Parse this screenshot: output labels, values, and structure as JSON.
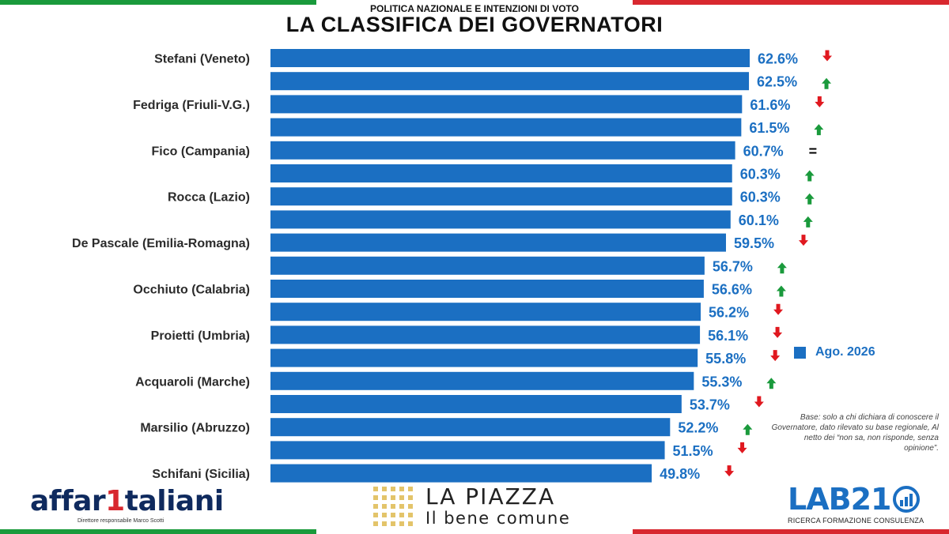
{
  "header": {
    "subtitle": "POLITICA NAZIONALE E INTENZIONI DI VOTO",
    "title": "LA CLASSIFICA DEI GOVERNATORI"
  },
  "colors": {
    "bar": "#1b6fc2",
    "value_label": "#1b6fc2",
    "arrow_up": "#1a9a3c",
    "arrow_down": "#e0181f",
    "flag_green": "#1a9a3c",
    "flag_red": "#d8282f"
  },
  "legend": {
    "label": "Ago. 2026"
  },
  "note": "Base: solo a chi dichiara di conoscere il Governatore, dato rilevato su base regionale, Al netto dei “non sa, non risponde, senza opinione”.",
  "logos": {
    "affaritaliani": {
      "name_part1": "affar",
      "name_digit": "1",
      "name_part2": "taliani",
      "tagline": "Direttore responsabile Marco Scotti"
    },
    "lapiazza": {
      "name": "LA PIAZZA",
      "tagline": "Il bene comune"
    },
    "lab21": {
      "name": "LAB21",
      "tagline": "RICERCA FORMAZIONE CONSULENZA"
    }
  },
  "chart_data": {
    "type": "bar",
    "orientation": "horizontal",
    "title": "LA CLASSIFICA DEI GOVERNATORI",
    "series": [
      {
        "name": "Ago. 2026"
      }
    ],
    "categories": [
      "Stefani (Veneto)",
      "",
      "Fedriga (Friuli-V.G.)",
      "",
      "Fico (Campania)",
      "",
      "Rocca (Lazio)",
      "",
      "De Pascale (Emilia-Romagna)",
      "",
      "Occhiuto (Calabria)",
      "",
      "Proietti (Umbria)",
      "",
      "Acquaroli (Marche)",
      "",
      "Marsilio (Abruzzo)",
      "",
      "Schifani (Sicilia)"
    ],
    "values": [
      62.6,
      62.5,
      61.6,
      61.5,
      60.7,
      60.3,
      60.3,
      60.1,
      59.5,
      56.7,
      56.6,
      56.2,
      56.1,
      55.8,
      55.3,
      53.7,
      52.2,
      51.5,
      49.8
    ],
    "value_labels": [
      "62.6%",
      "62.5%",
      "61.6%",
      "61.5%",
      "60.7%",
      "60.3%",
      "60.3%",
      "60.1%",
      "59.5%",
      "56.7%",
      "56.6%",
      "56.2%",
      "56.1%",
      "55.8%",
      "55.3%",
      "53.7%",
      "52.2%",
      "51.5%",
      "49.8%"
    ],
    "trend": [
      "down",
      "up",
      "down",
      "up",
      "equal",
      "up",
      "up",
      "up",
      "down",
      "up",
      "up",
      "down",
      "down",
      "down",
      "up",
      "down",
      "up",
      "down",
      "down"
    ],
    "trend_equal_symbol": "=",
    "xlim": [
      0,
      62.6
    ],
    "grid": false,
    "legend_position": "right"
  }
}
